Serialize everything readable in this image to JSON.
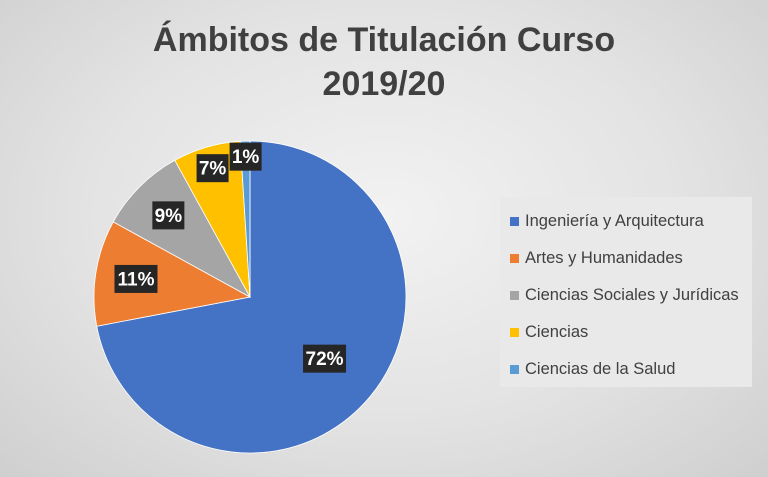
{
  "chart_data": {
    "type": "pie",
    "title_lines": [
      "Ámbitos de Titulación Curso",
      "2019/20"
    ],
    "categories": [
      "Ingeniería y Arquitectura",
      "Artes y Humanidades",
      "Ciencias Sociales y Jurídicas",
      "Ciencias",
      "Ciencias de la Salud"
    ],
    "values": [
      72,
      11,
      9,
      7,
      1
    ],
    "data_labels": [
      "72%",
      "11%",
      "9%",
      "7%",
      "1%"
    ],
    "colors": [
      "#4472C4",
      "#ED7D31",
      "#A5A5A5",
      "#FFC000",
      "#5B9BD5"
    ],
    "legend_position": "right",
    "data_label_style": {
      "background": "#262626",
      "text_color": "#ffffff"
    }
  }
}
